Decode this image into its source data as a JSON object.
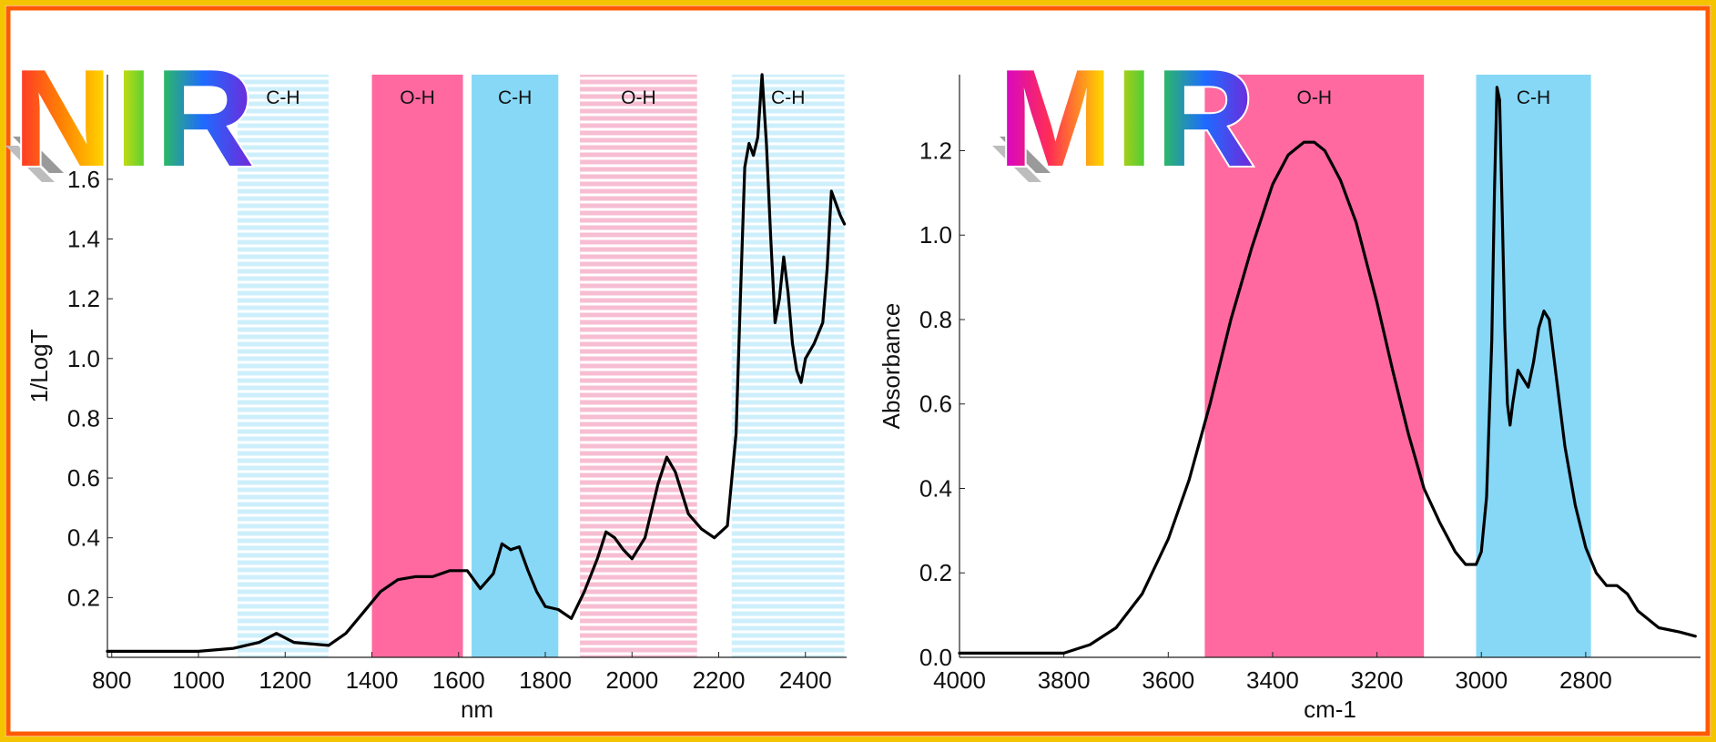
{
  "logos": {
    "left": "NIR",
    "right": "MIR"
  },
  "colors": {
    "border_outer": "#f5c400",
    "border_inner": "#ff5a00",
    "oh_band": "#ff69a0",
    "ch_band": "#86d8f6",
    "oh_band_striped": "#f7bdd2",
    "ch_band_striped": "#cdeffb",
    "spectrum_line": "#000000"
  },
  "chart_data": [
    {
      "type": "line",
      "xlabel": "nm",
      "ylabel": "1/LogT",
      "xlim": [
        790,
        2495
      ],
      "ylim": [
        0,
        1.95
      ],
      "x_ticks": [
        800,
        1000,
        1200,
        1400,
        1600,
        1800,
        2000,
        2200,
        2400
      ],
      "y_ticks": [
        0.2,
        0.4,
        0.6,
        0.8,
        1.0,
        1.2,
        1.4,
        1.6
      ],
      "y_tick_labels": [
        "0.2",
        "0.4",
        "0.6",
        "0.8",
        "1.0",
        "1.2",
        "1.4",
        "1.6"
      ],
      "x_reversed": false,
      "bands": [
        {
          "label": "C-H",
          "from": 1090,
          "to": 1300,
          "kind": "ch",
          "style": "striped"
        },
        {
          "label": "O-H",
          "from": 1400,
          "to": 1610,
          "kind": "oh",
          "style": "solid"
        },
        {
          "label": "C-H",
          "from": 1630,
          "to": 1830,
          "kind": "ch",
          "style": "solid"
        },
        {
          "label": "O-H",
          "from": 1880,
          "to": 2150,
          "kind": "oh",
          "style": "striped"
        },
        {
          "label": "C-H",
          "from": 2230,
          "to": 2490,
          "kind": "ch",
          "style": "striped"
        }
      ],
      "x": [
        790,
        900,
        1000,
        1080,
        1140,
        1180,
        1220,
        1300,
        1340,
        1380,
        1420,
        1460,
        1500,
        1540,
        1580,
        1620,
        1650,
        1680,
        1700,
        1720,
        1740,
        1760,
        1780,
        1800,
        1830,
        1860,
        1890,
        1920,
        1940,
        1960,
        1980,
        2000,
        2030,
        2060,
        2080,
        2100,
        2130,
        2160,
        2190,
        2220,
        2240,
        2250,
        2260,
        2270,
        2280,
        2290,
        2300,
        2310,
        2320,
        2330,
        2340,
        2350,
        2360,
        2370,
        2380,
        2390,
        2400,
        2420,
        2440,
        2450,
        2460,
        2470,
        2480,
        2490
      ],
      "y": [
        0.02,
        0.02,
        0.02,
        0.03,
        0.05,
        0.08,
        0.05,
        0.04,
        0.08,
        0.15,
        0.22,
        0.26,
        0.27,
        0.27,
        0.29,
        0.29,
        0.23,
        0.28,
        0.38,
        0.36,
        0.37,
        0.29,
        0.22,
        0.17,
        0.16,
        0.13,
        0.22,
        0.33,
        0.42,
        0.4,
        0.36,
        0.33,
        0.4,
        0.58,
        0.67,
        0.62,
        0.48,
        0.43,
        0.4,
        0.44,
        0.75,
        1.2,
        1.64,
        1.72,
        1.68,
        1.74,
        1.95,
        1.72,
        1.4,
        1.12,
        1.2,
        1.34,
        1.22,
        1.05,
        0.96,
        0.92,
        1.0,
        1.05,
        1.12,
        1.3,
        1.56,
        1.52,
        1.48,
        1.45
      ]
    },
    {
      "type": "line",
      "xlabel": "cm-1",
      "ylabel": "Absorbance",
      "xlim": [
        4000,
        2580
      ],
      "ylim": [
        0,
        1.38
      ],
      "x_ticks": [
        4000,
        3800,
        3600,
        3400,
        3200,
        3000,
        2800
      ],
      "y_ticks": [
        0.0,
        0.2,
        0.4,
        0.6,
        0.8,
        1.0,
        1.2
      ],
      "y_tick_labels": [
        "0.0",
        "0.2",
        "0.4",
        "0.6",
        "0.8",
        "1.0",
        "1.2"
      ],
      "x_reversed": true,
      "bands": [
        {
          "label": "O-H",
          "from": 3530,
          "to": 3110,
          "kind": "oh",
          "style": "solid"
        },
        {
          "label": "C-H",
          "from": 3010,
          "to": 2790,
          "kind": "ch",
          "style": "solid"
        }
      ],
      "x": [
        4000,
        3900,
        3800,
        3750,
        3700,
        3650,
        3600,
        3560,
        3520,
        3480,
        3440,
        3400,
        3370,
        3340,
        3320,
        3300,
        3270,
        3240,
        3200,
        3170,
        3140,
        3110,
        3080,
        3050,
        3030,
        3010,
        3000,
        2990,
        2980,
        2975,
        2970,
        2965,
        2960,
        2955,
        2950,
        2945,
        2940,
        2930,
        2920,
        2910,
        2900,
        2890,
        2880,
        2870,
        2860,
        2840,
        2820,
        2800,
        2780,
        2760,
        2740,
        2720,
        2700,
        2660,
        2620,
        2590
      ],
      "y": [
        0.01,
        0.01,
        0.01,
        0.03,
        0.07,
        0.15,
        0.28,
        0.42,
        0.6,
        0.8,
        0.97,
        1.12,
        1.19,
        1.22,
        1.22,
        1.2,
        1.13,
        1.03,
        0.84,
        0.68,
        0.53,
        0.4,
        0.32,
        0.25,
        0.22,
        0.22,
        0.25,
        0.38,
        0.75,
        1.1,
        1.35,
        1.32,
        1.05,
        0.78,
        0.6,
        0.55,
        0.6,
        0.68,
        0.66,
        0.64,
        0.7,
        0.78,
        0.82,
        0.8,
        0.7,
        0.5,
        0.36,
        0.26,
        0.2,
        0.17,
        0.17,
        0.15,
        0.11,
        0.07,
        0.06,
        0.05
      ]
    }
  ]
}
